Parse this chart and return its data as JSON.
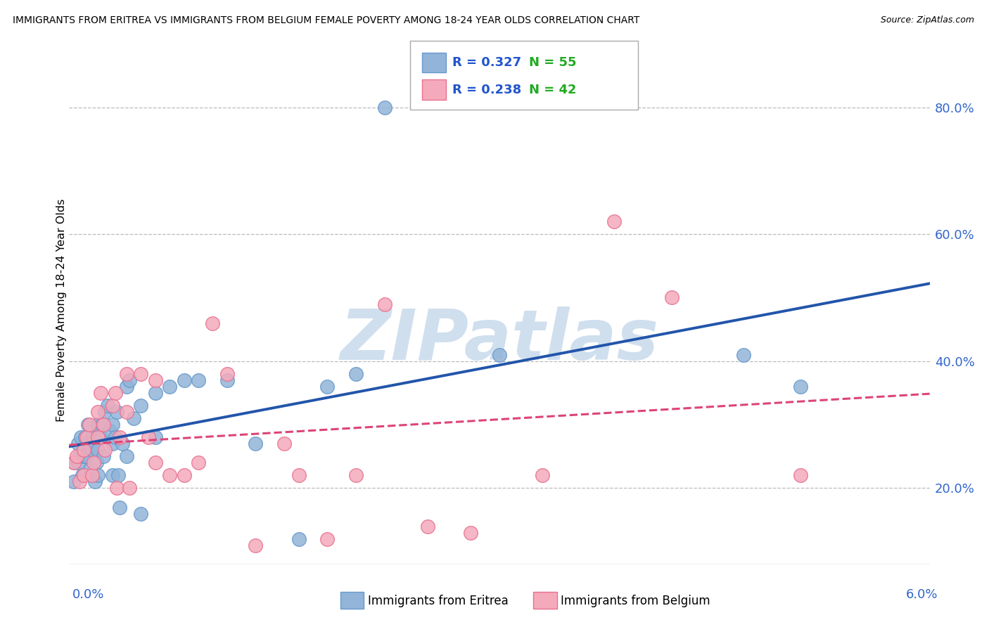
{
  "title": "IMMIGRANTS FROM ERITREA VS IMMIGRANTS FROM BELGIUM FEMALE POVERTY AMONG 18-24 YEAR OLDS CORRELATION CHART",
  "source": "Source: ZipAtlas.com",
  "ylabel": "Female Poverty Among 18-24 Year Olds",
  "ytick_vals": [
    0.2,
    0.4,
    0.6,
    0.8
  ],
  "xmin": 0.0,
  "xmax": 0.06,
  "ymin": 0.08,
  "ymax": 0.88,
  "eritrea_color": "#92B4D8",
  "eritrea_edge": "#6699CC",
  "belgium_color": "#F4AABB",
  "belgium_edge": "#E87090",
  "eritrea_R": 0.327,
  "eritrea_N": 55,
  "belgium_R": 0.238,
  "belgium_N": 42,
  "trendline_eritrea_color": "#2255AA",
  "trendline_belgium_color": "#DD4477",
  "watermark_text": "ZIPatlas",
  "watermark_color": "#D0DFEE",
  "legend_R_color": "#2255CC",
  "legend_N_color": "#22AA22",
  "eritrea_x": [
    0.0003,
    0.0003,
    0.0006,
    0.0006,
    0.0007,
    0.0008,
    0.0009,
    0.001,
    0.001,
    0.0011,
    0.0012,
    0.0013,
    0.0014,
    0.0015,
    0.0016,
    0.0017,
    0.0018,
    0.0019,
    0.002,
    0.002,
    0.002,
    0.0022,
    0.0023,
    0.0024,
    0.0025,
    0.0027,
    0.0028,
    0.003,
    0.003,
    0.003,
    0.0032,
    0.0033,
    0.0034,
    0.0035,
    0.0037,
    0.004,
    0.004,
    0.0042,
    0.0045,
    0.005,
    0.005,
    0.006,
    0.006,
    0.007,
    0.008,
    0.009,
    0.011,
    0.013,
    0.016,
    0.018,
    0.02,
    0.022,
    0.03,
    0.047,
    0.051
  ],
  "eritrea_y": [
    0.24,
    0.21,
    0.27,
    0.24,
    0.25,
    0.28,
    0.22,
    0.26,
    0.25,
    0.28,
    0.25,
    0.3,
    0.27,
    0.23,
    0.26,
    0.28,
    0.21,
    0.24,
    0.3,
    0.26,
    0.22,
    0.28,
    0.3,
    0.25,
    0.32,
    0.33,
    0.29,
    0.27,
    0.3,
    0.22,
    0.28,
    0.32,
    0.22,
    0.17,
    0.27,
    0.36,
    0.25,
    0.37,
    0.31,
    0.33,
    0.16,
    0.35,
    0.28,
    0.36,
    0.37,
    0.37,
    0.37,
    0.27,
    0.12,
    0.36,
    0.38,
    0.8,
    0.41,
    0.41,
    0.36
  ],
  "belgium_x": [
    0.0003,
    0.0005,
    0.0007,
    0.001,
    0.001,
    0.0012,
    0.0014,
    0.0016,
    0.0017,
    0.002,
    0.002,
    0.0022,
    0.0024,
    0.0025,
    0.003,
    0.0032,
    0.0033,
    0.0035,
    0.004,
    0.004,
    0.0042,
    0.005,
    0.0055,
    0.006,
    0.006,
    0.007,
    0.008,
    0.009,
    0.01,
    0.011,
    0.013,
    0.015,
    0.016,
    0.018,
    0.02,
    0.022,
    0.025,
    0.028,
    0.033,
    0.038,
    0.042,
    0.051
  ],
  "belgium_y": [
    0.24,
    0.25,
    0.21,
    0.26,
    0.22,
    0.28,
    0.3,
    0.22,
    0.24,
    0.28,
    0.32,
    0.35,
    0.3,
    0.26,
    0.33,
    0.35,
    0.2,
    0.28,
    0.38,
    0.32,
    0.2,
    0.38,
    0.28,
    0.37,
    0.24,
    0.22,
    0.22,
    0.24,
    0.46,
    0.38,
    0.11,
    0.27,
    0.22,
    0.12,
    0.22,
    0.49,
    0.14,
    0.13,
    0.22,
    0.62,
    0.5,
    0.22
  ]
}
